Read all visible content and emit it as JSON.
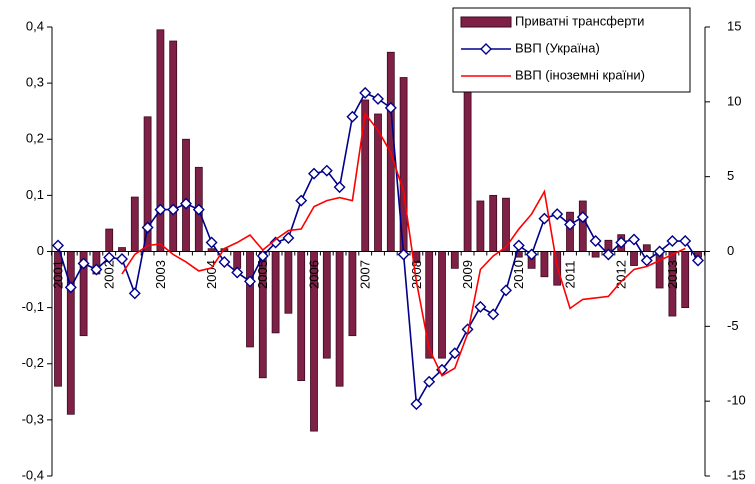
{
  "chart_data": {
    "type": "bar-line",
    "categories": [
      "2001",
      null,
      null,
      null,
      "2002",
      null,
      null,
      null,
      "2003",
      null,
      null,
      null,
      "2004",
      null,
      null,
      null,
      "2005",
      null,
      null,
      null,
      "2006",
      null,
      null,
      null,
      "2007",
      null,
      null,
      null,
      "2008",
      null,
      null,
      null,
      "2009",
      null,
      null,
      null,
      "2010",
      null,
      null,
      null,
      "2011",
      null,
      null,
      null,
      "2012",
      null,
      null,
      null,
      "2013",
      null,
      null
    ],
    "series": [
      {
        "name": "Приватні трансферти",
        "type": "bar",
        "color": "#7f2047",
        "values": [
          -0.24,
          -0.29,
          -0.15,
          -0.04,
          0.04,
          0.007,
          0.097,
          0.24,
          0.395,
          0.375,
          0.2,
          0.15,
          0.005,
          0.005,
          -0.03,
          -0.17,
          -0.225,
          -0.145,
          -0.11,
          -0.23,
          -0.32,
          -0.19,
          -0.24,
          -0.15,
          0.27,
          0.245,
          0.355,
          0.31,
          -0.02,
          -0.19,
          -0.19,
          -0.03,
          0.3,
          0.09,
          0.1,
          0.095,
          -0.01,
          -0.03,
          -0.045,
          -0.06,
          0.07,
          0.09,
          -0.01,
          0.02,
          0.03,
          -0.025,
          0.012,
          -0.065,
          -0.115,
          -0.1,
          -0.01
        ]
      },
      {
        "name": "ВВП (Україна)",
        "type": "line",
        "axis": "y2",
        "color": "#00008b",
        "marker": "diamond",
        "values": [
          0.4,
          -2.4,
          -0.8,
          -1.2,
          -0.4,
          -0.5,
          -2.8,
          1.6,
          2.8,
          2.8,
          3.2,
          2.8,
          0.6,
          -0.7,
          -1.4,
          -2.0,
          -0.3,
          0.6,
          0.9,
          3.4,
          5.2,
          5.4,
          4.3,
          9.0,
          10.6,
          10.2,
          9.6,
          -0.2,
          -10.2,
          -8.7,
          -7.9,
          -6.8,
          -5.2,
          -3.7,
          -4.2,
          -2.6,
          0.4,
          -0.2,
          2.2,
          2.5,
          1.8,
          2.3,
          0.7,
          -0.2,
          0.6,
          0.8,
          -0.6,
          0.0,
          0.7,
          0.7,
          -0.6
        ]
      },
      {
        "name": "ВВП (іноземні країни)",
        "type": "line",
        "axis": "y2",
        "color": "#ff0000",
        "values": [
          null,
          null,
          null,
          null,
          null,
          -1.5,
          -0.2,
          0.4,
          0.5,
          -0.2,
          -0.7,
          -1.3,
          -1.1,
          0.2,
          0.6,
          1.1,
          0.1,
          0.8,
          1.4,
          1.5,
          3.0,
          3.4,
          3.6,
          3.4,
          9.2,
          8.1,
          6.6,
          4.0,
          -2.0,
          -6.5,
          -8.3,
          -7.8,
          -5.5,
          -1.2,
          -0.3,
          0.3,
          1.5,
          2.5,
          4.0,
          -1.0,
          -3.8,
          -3.2,
          -3.1,
          -3.0,
          -2.0,
          -1.2,
          -1.0,
          -0.6,
          -0.2,
          0.2,
          null
        ]
      }
    ],
    "ylim": [
      -0.4,
      0.4
    ],
    "yticks": [
      {
        "value": -0.4,
        "label": "-0,4"
      },
      {
        "value": -0.3,
        "label": "-0,3"
      },
      {
        "value": -0.2,
        "label": "-0,2"
      },
      {
        "value": -0.1,
        "label": "-0,1"
      },
      {
        "value": 0,
        "label": "0"
      },
      {
        "value": 0.1,
        "label": "0,1"
      },
      {
        "value": 0.2,
        "label": "0,2"
      },
      {
        "value": 0.3,
        "label": "0,3"
      },
      {
        "value": 0.4,
        "label": "0,4"
      }
    ],
    "y2lim": [
      -15,
      15
    ],
    "y2ticks": [
      -15,
      -10,
      -5,
      0,
      5,
      10,
      15
    ],
    "legend": "top-right",
    "grid": false
  }
}
